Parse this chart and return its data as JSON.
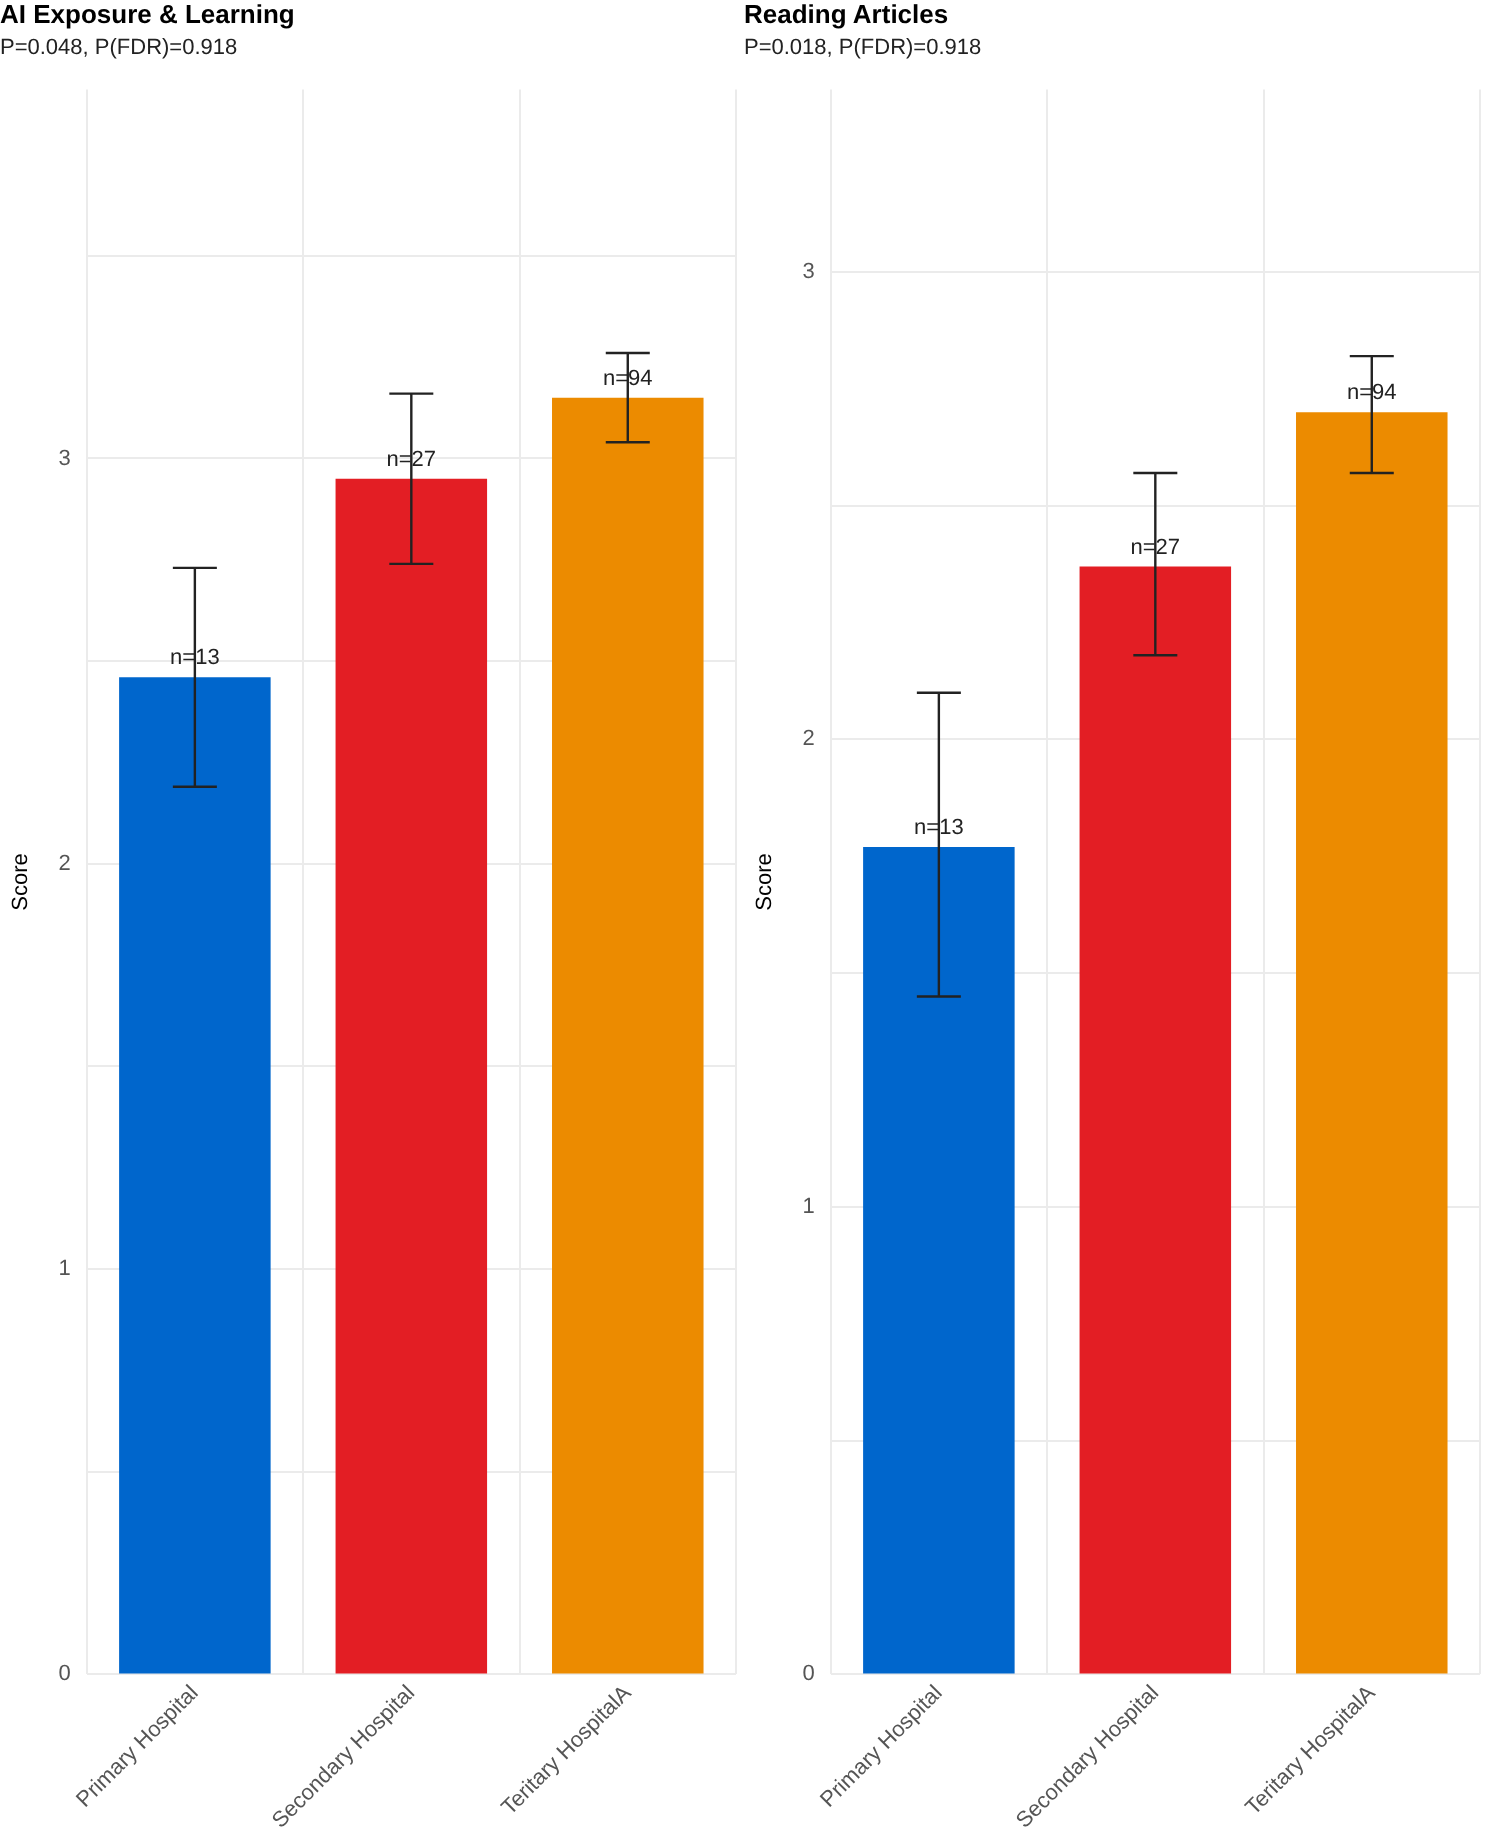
{
  "chart_data": [
    {
      "type": "bar",
      "title": "AI Exposure & Learning",
      "subtitle": "P=0.048, P(FDR)=0.918",
      "ylabel": "Score",
      "categories": [
        "Primary Hospital",
        "Secondary Hospital",
        "Teritary HospitalA"
      ],
      "values": [
        2.46,
        2.95,
        3.15
      ],
      "colors": [
        "#0066cc",
        "#e31e24",
        "#ec8b00"
      ],
      "errors": [
        [
          2.19,
          2.73
        ],
        [
          2.74,
          3.16
        ],
        [
          3.04,
          3.26
        ]
      ],
      "ylim": [
        0,
        3.91
      ],
      "yticks": [
        0,
        {
          "value": 0.5,
          "label": null
        },
        1,
        {
          "value": 1.5,
          "label": null
        },
        2,
        {
          "value": 2.5,
          "label": null
        },
        3,
        {
          "value": 3.5,
          "label": null
        }
      ],
      "grid": true,
      "annotations": [
        {
          "text": "n=13",
          "x": "Primary Hospital",
          "y": 2.46
        },
        {
          "text": "n=27",
          "x": "Secondary Hospital",
          "y": 2.95
        },
        {
          "text": "n=94",
          "x": "Teritary HospitalA",
          "y": 3.15
        }
      ]
    },
    {
      "type": "bar",
      "title": "Reading Articles",
      "subtitle": "P=0.018, P(FDR)=0.918",
      "ylabel": "Score",
      "categories": [
        "Primary Hospital",
        "Secondary Hospital",
        "Teritary HospitalA"
      ],
      "values": [
        1.77,
        2.37,
        2.7
      ],
      "colors": [
        "#0066cc",
        "#e31e24",
        "#ec8b00"
      ],
      "errors": [
        [
          1.45,
          2.1
        ],
        [
          2.18,
          2.57
        ],
        [
          2.57,
          2.82
        ]
      ],
      "ylim": [
        0,
        3.39
      ],
      "yticks": [
        0,
        {
          "value": 0.5,
          "label": null
        },
        1,
        {
          "value": 1.5,
          "label": null
        },
        2,
        {
          "value": 2.5,
          "label": null
        },
        3
      ],
      "grid": true,
      "annotations": [
        {
          "text": "n=13",
          "x": "Primary Hospital",
          "y": 1.77
        },
        {
          "text": "n=27",
          "x": "Secondary Hospital",
          "y": 2.37
        },
        {
          "text": "n=94",
          "x": "Teritary HospitalA",
          "y": 2.7
        }
      ]
    }
  ]
}
